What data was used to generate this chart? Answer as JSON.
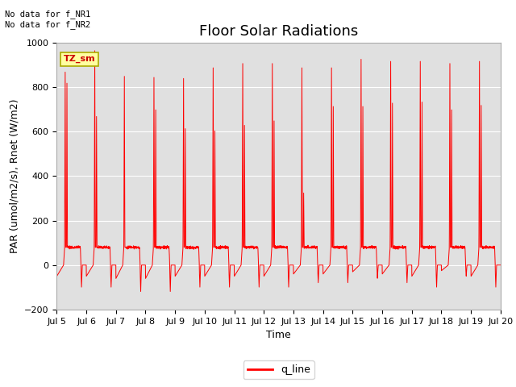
{
  "title": "Floor Solar Radiations",
  "xlabel": "Time",
  "ylabel": "PAR (umol/m2/s), Rnet (W/m2)",
  "ylim": [
    -200,
    1000
  ],
  "yticks": [
    -200,
    0,
    200,
    400,
    600,
    800,
    1000
  ],
  "n_days": 15,
  "xtick_labels": [
    "Jul 5",
    "Jul 6",
    "Jul 7",
    "Jul 8",
    "Jul 9",
    "Jul 10",
    "Jul 11",
    "Jul 12",
    "Jul 13",
    "Jul 14",
    "Jul 15",
    "Jul 16",
    "Jul 17",
    "Jul 18",
    "Jul 19",
    "Jul 20"
  ],
  "line_color": "#FF0000",
  "line_label": "q_line",
  "background_color": "#E0E0E0",
  "no_data_text1": "No data for f_NR1",
  "no_data_text2": "No data for f_NR2",
  "tz_label": "TZ_sm",
  "title_fontsize": 13,
  "axis_label_fontsize": 9,
  "tick_label_fontsize": 8,
  "day_peaks": [
    900,
    1000,
    880,
    875,
    870,
    920,
    940,
    940,
    920,
    920,
    960,
    950,
    950,
    940,
    950
  ],
  "day_secondary": [
    820,
    670,
    0,
    700,
    615,
    605,
    630,
    650,
    325,
    715,
    715,
    730,
    735,
    700,
    720
  ],
  "day_baseline": [
    80,
    80,
    80,
    80,
    80,
    80,
    80,
    80,
    80,
    80,
    80,
    80,
    80,
    80,
    80
  ],
  "day_dip": [
    -100,
    -100,
    -120,
    -120,
    -100,
    -100,
    -100,
    -100,
    -80,
    -80,
    -60,
    -80,
    -100,
    -50,
    -100
  ],
  "pts_per_day": 288
}
